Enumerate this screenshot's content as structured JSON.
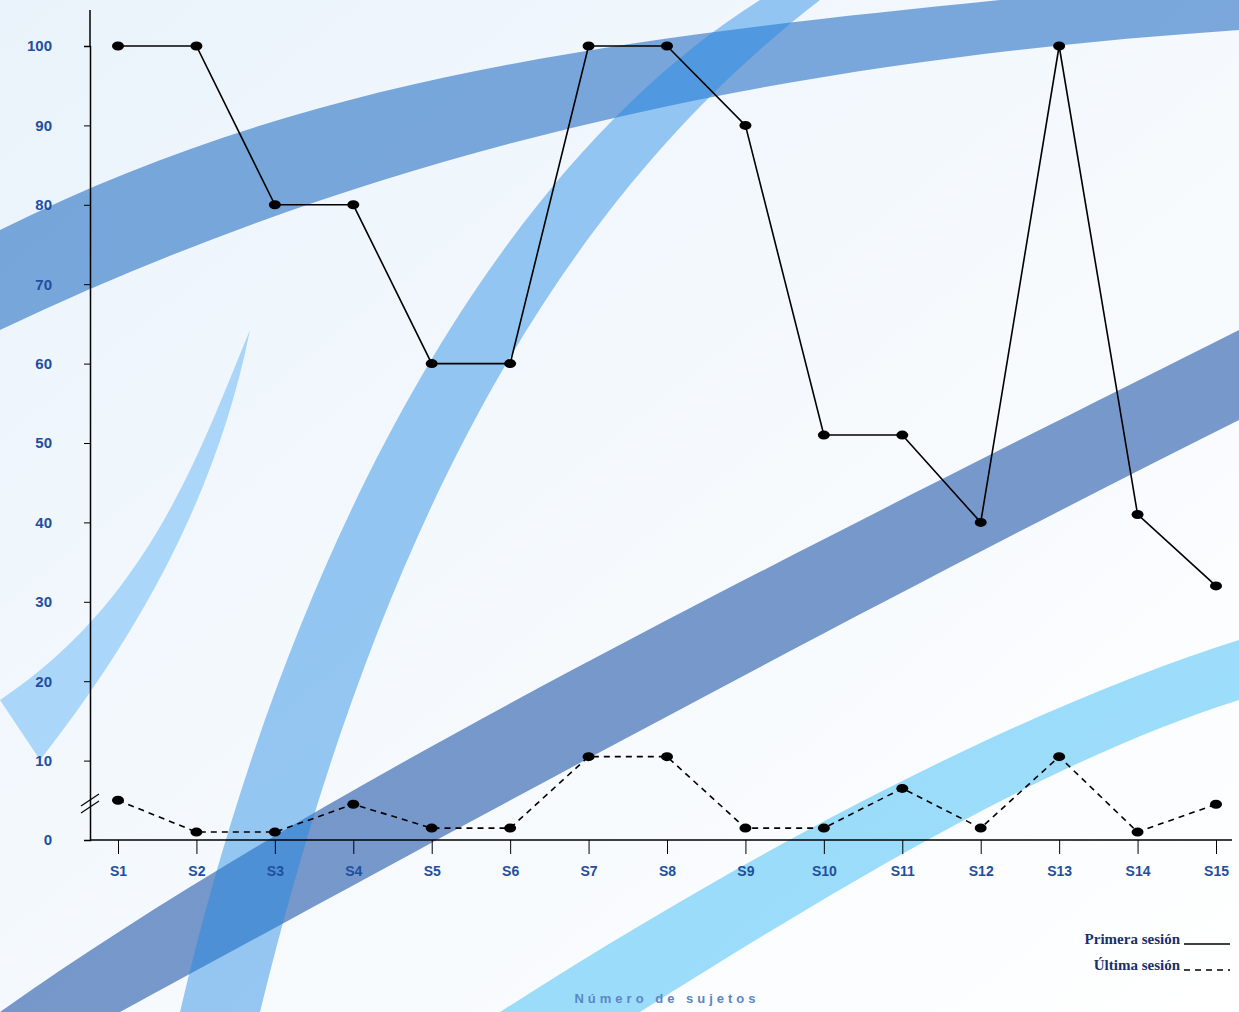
{
  "chart_data": {
    "type": "line",
    "xlabel": "Número de sujetos",
    "categories": [
      "S1",
      "S2",
      "S3",
      "S4",
      "S5",
      "S6",
      "S7",
      "S8",
      "S9",
      "S10",
      "S11",
      "S12",
      "S13",
      "S14",
      "S15"
    ],
    "series": [
      {
        "name": "Primera sesión",
        "color": "#000000",
        "line_style": "solid",
        "marker": "circle",
        "values": [
          100,
          100,
          80,
          80,
          60,
          60,
          100,
          100,
          90,
          51,
          51,
          40,
          100,
          41,
          32
        ]
      },
      {
        "name": "Última sesión",
        "color": "#000000",
        "line_style": "dashed",
        "marker": "circle",
        "values": [
          5,
          1,
          1,
          4.5,
          1.5,
          1.5,
          10.5,
          10.5,
          1.5,
          1.5,
          6.5,
          1.5,
          10.5,
          1,
          4.5
        ]
      }
    ],
    "ylim": [
      0,
      100
    ],
    "yticks": [
      0,
      10,
      20,
      30,
      40,
      50,
      60,
      70,
      80,
      90,
      100
    ],
    "grid": false,
    "legend": "lower right"
  }
}
